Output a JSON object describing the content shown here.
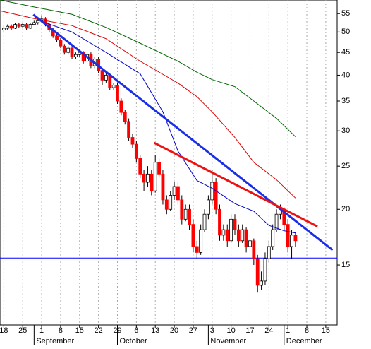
{
  "chart_data": {
    "type": "candlestick",
    "up_color": "#ffffff",
    "down_color": "#ff0000",
    "outline_color": "#000000",
    "log_scale": true,
    "grid": true,
    "ylim": [
      11,
      59
    ],
    "yticks": [
      15,
      20,
      25,
      30,
      35,
      40,
      45,
      50,
      55
    ],
    "xlim": [
      -1,
      88
    ],
    "xticks": [
      {
        "value": 0,
        "label": "18"
      },
      {
        "value": 5,
        "label": "25"
      },
      {
        "value": 10,
        "label": "1"
      },
      {
        "value": 15,
        "label": "8"
      },
      {
        "value": 20,
        "label": "15"
      },
      {
        "value": 25,
        "label": "22"
      },
      {
        "value": 30,
        "label": "29"
      },
      {
        "value": 35,
        "label": "6"
      },
      {
        "value": 40,
        "label": "13"
      },
      {
        "value": 45,
        "label": "20"
      },
      {
        "value": 50,
        "label": "27"
      },
      {
        "value": 55,
        "label": "3"
      },
      {
        "value": 60,
        "label": "10"
      },
      {
        "value": 65,
        "label": "17"
      },
      {
        "value": 70,
        "label": "24"
      },
      {
        "value": 75,
        "label": "1"
      },
      {
        "value": 80,
        "label": "8"
      },
      {
        "value": 85,
        "label": "15"
      }
    ],
    "months": [
      {
        "value": 8,
        "label": "September"
      },
      {
        "value": 30,
        "label": "October"
      },
      {
        "value": 54,
        "label": "November"
      },
      {
        "value": 74,
        "label": "December"
      }
    ],
    "open": [
      50.5,
      51,
      51.5,
      51,
      52,
      51.5,
      52,
      51,
      52,
      52.5,
      53,
      53.5,
      52,
      50.5,
      49,
      48,
      46.5,
      45,
      46,
      44,
      44.5,
      45,
      43,
      44.5,
      42,
      43.5,
      41,
      39,
      40,
      37.5,
      38,
      35,
      33,
      31.5,
      29,
      28,
      26,
      24,
      23,
      24,
      22,
      25.5,
      24,
      21,
      20,
      21.5,
      22.5,
      21,
      19,
      20,
      18.5,
      16.5,
      16,
      18,
      19.5,
      21,
      23,
      20,
      17.5,
      18,
      17,
      19,
      18,
      17,
      18,
      16.5,
      17,
      15.5,
      13.5,
      13.8,
      15.5,
      16.5,
      18,
      19.5,
      20,
      18.5,
      16.5,
      17.5
    ],
    "high": [
      51.5,
      52,
      52,
      52.5,
      52.5,
      52.5,
      52.3,
      52.5,
      53,
      54,
      54.5,
      54,
      52.5,
      51,
      49.5,
      48.5,
      47,
      46.5,
      46.5,
      45,
      45.5,
      45.3,
      45,
      45,
      44,
      44,
      41.5,
      40.5,
      40.5,
      38.5,
      38.5,
      35.5,
      33.5,
      32,
      29.5,
      28.5,
      26.5,
      24.5,
      25,
      24.5,
      26.5,
      26,
      24.5,
      21.5,
      22,
      23,
      23,
      21.5,
      20.5,
      20.5,
      19,
      17,
      18.5,
      20,
      21.5,
      24.5,
      23.5,
      20.5,
      18.5,
      18.5,
      19.5,
      19.5,
      18.5,
      18.5,
      18.2,
      17.5,
      17.2,
      15.8,
      14.5,
      16,
      17,
      18.5,
      20,
      20.5,
      20.2,
      19,
      18,
      17.8
    ],
    "low": [
      50,
      50.5,
      50.5,
      50.8,
      51,
      51,
      50.5,
      50.8,
      51.8,
      52,
      52.5,
      51.5,
      50,
      48.5,
      47.5,
      46,
      44.5,
      44.5,
      43.5,
      43.5,
      44,
      42.5,
      42.5,
      41.5,
      41.5,
      40.5,
      38,
      38.5,
      37,
      37,
      34.5,
      32.5,
      31,
      28.5,
      27.5,
      25.5,
      23.5,
      22,
      22.5,
      21.5,
      21.8,
      23.5,
      20.5,
      19.5,
      19.8,
      21,
      20.5,
      18.5,
      18.8,
      18,
      16,
      15.5,
      15.8,
      17.8,
      19,
      20.5,
      19.5,
      17,
      17,
      16.5,
      16.8,
      17.5,
      16.5,
      16.8,
      16,
      16,
      15,
      13,
      13.2,
      13.5,
      15.2,
      16.2,
      17.8,
      19,
      18,
      16,
      15.5,
      16.5
    ],
    "close": [
      51,
      51.5,
      51,
      52,
      51.5,
      52,
      51,
      52,
      52.5,
      53,
      53.5,
      52,
      50.5,
      49,
      48,
      46.5,
      45,
      46,
      44,
      44.5,
      45,
      43,
      44.5,
      42,
      43.5,
      41,
      39,
      40,
      37.5,
      38,
      35,
      33,
      31.5,
      29,
      28,
      26,
      24,
      23,
      24,
      22,
      25.5,
      24,
      21,
      20,
      21.5,
      22.5,
      21,
      19,
      20,
      18.5,
      16.5,
      16,
      18,
      19.5,
      21,
      23,
      20,
      17.5,
      18,
      17,
      19,
      18,
      17,
      18,
      16.5,
      17,
      15.5,
      13.5,
      13.8,
      15.5,
      16.5,
      18,
      19.5,
      20,
      18.5,
      16.5,
      17.5,
      17
    ],
    "lines": [
      {
        "color": "#0000cc",
        "width": 1,
        "x": [
          10,
          18,
          27,
          36,
          42,
          46,
          51,
          55,
          61,
          66,
          70,
          74,
          77
        ],
        "values": [
          52.8,
          50,
          45,
          40.3,
          33.1,
          27,
          23.2,
          22.3,
          20.6,
          19.8,
          18.4,
          17.9,
          17.7
        ]
      },
      {
        "color": "#dd0000",
        "width": 1,
        "x": [
          -1,
          8,
          18,
          27,
          36,
          46,
          51,
          55,
          61,
          66,
          72,
          77
        ],
        "values": [
          55.8,
          53.6,
          51.7,
          48.3,
          43,
          38.4,
          35.8,
          33.1,
          29,
          25.5,
          23.3,
          21.2
        ]
      },
      {
        "color": "#006600",
        "width": 1,
        "x": [
          -1,
          8,
          18,
          27,
          36,
          46,
          51,
          55,
          61,
          66,
          72,
          77
        ],
        "values": [
          59,
          56.9,
          54.8,
          51.2,
          47.2,
          43,
          40.6,
          39.1,
          37.7,
          35,
          32,
          29.1
        ]
      },
      {
        "color": "#1a2ee6",
        "width": 3,
        "x": [
          7.8,
          86.8
        ],
        "values": [
          54.7,
          16.2
        ]
      },
      {
        "color": "#ee1111",
        "width": 3,
        "x": [
          39.7,
          82.8
        ],
        "values": [
          28.2,
          18.3
        ]
      }
    ],
    "hline": {
      "color": "#0000ff",
      "value": 15.55
    }
  }
}
